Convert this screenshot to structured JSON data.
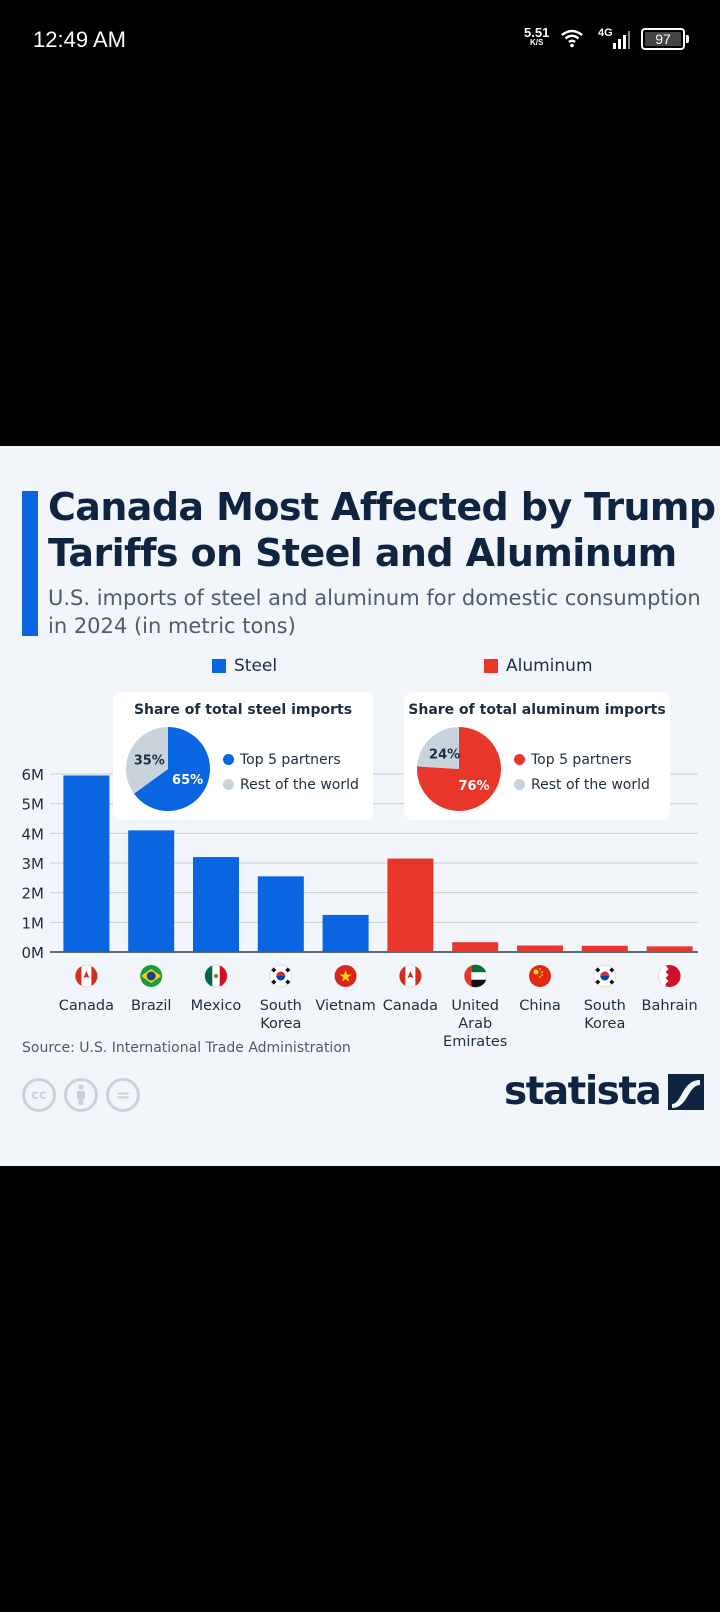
{
  "status_bar": {
    "time": "12:49 AM",
    "net_speed_value": "5.51",
    "net_speed_unit": "K/S",
    "network_type": "4G",
    "battery": "97"
  },
  "infographic": {
    "title": "Canada Most Affected by Trump Tariffs on Steel and Aluminum",
    "subtitle": "U.S. imports of steel and aluminum for domestic consumption in 2024 (in metric tons)",
    "source": "Source: U.S. International Trade Administration",
    "brand": "statista",
    "license_icons": [
      "cc-icon",
      "attribution-icon",
      "no-derivatives-icon"
    ],
    "license_labels": [
      "cc",
      "i",
      "="
    ]
  },
  "chart_data": [
    {
      "type": "bar",
      "title": "U.S. imports of steel and aluminum for domestic consumption in 2024 (in metric tons)",
      "xlabel": "",
      "ylabel": "",
      "ylim": [
        0,
        6000000
      ],
      "yticks": [
        0,
        1000000,
        2000000,
        3000000,
        4000000,
        5000000,
        6000000
      ],
      "ytick_labels": [
        "0M",
        "1M",
        "2M",
        "3M",
        "4M",
        "5M",
        "6M"
      ],
      "grid": true,
      "legend": [
        {
          "name": "Steel",
          "color": "#0966e0"
        },
        {
          "name": "Aluminum",
          "color": "#e8372a"
        }
      ],
      "legend_position": "top",
      "categories": [
        "Canada",
        "Brazil",
        "Mexico",
        "South Korea",
        "Vietnam",
        "Canada",
        "United Arab Emirates",
        "China",
        "South Korea",
        "Bahrain"
      ],
      "category_lines": [
        [
          "Canada"
        ],
        [
          "Brazil"
        ],
        [
          "Mexico"
        ],
        [
          "South",
          "Korea"
        ],
        [
          "Vietnam"
        ],
        [
          "Canada"
        ],
        [
          "United",
          "Arab",
          "Emirates"
        ],
        [
          "China"
        ],
        [
          "South",
          "Korea"
        ],
        [
          "Bahrain"
        ]
      ],
      "flags": [
        "canada-flag-icon",
        "brazil-flag-icon",
        "mexico-flag-icon",
        "south-korea-flag-icon",
        "vietnam-flag-icon",
        "canada-flag-icon",
        "uae-flag-icon",
        "china-flag-icon",
        "south-korea-flag-icon",
        "bahrain-flag-icon"
      ],
      "series": [
        {
          "name": "Steel",
          "color": "#0966e0",
          "values": [
            5950000,
            4100000,
            3200000,
            2550000,
            1250000,
            null,
            null,
            null,
            null,
            null
          ]
        },
        {
          "name": "Aluminum",
          "color": "#e8372a",
          "values": [
            null,
            null,
            null,
            null,
            null,
            3150000,
            330000,
            220000,
            210000,
            190000
          ]
        }
      ]
    },
    {
      "type": "pie",
      "title": "Share of total steel imports",
      "labels": [
        "Top 5 partners",
        "Rest of the world"
      ],
      "values": [
        65,
        35
      ],
      "value_labels": [
        "65%",
        "35%"
      ],
      "colors": [
        "#0966e0",
        "#c9d3dc"
      ]
    },
    {
      "type": "pie",
      "title": "Share of total aluminum imports",
      "labels": [
        "Top 5 partners",
        "Rest of the world"
      ],
      "values": [
        76,
        24
      ],
      "value_labels": [
        "76%",
        "24%"
      ],
      "colors": [
        "#e8372a",
        "#c9d3dc"
      ]
    }
  ]
}
